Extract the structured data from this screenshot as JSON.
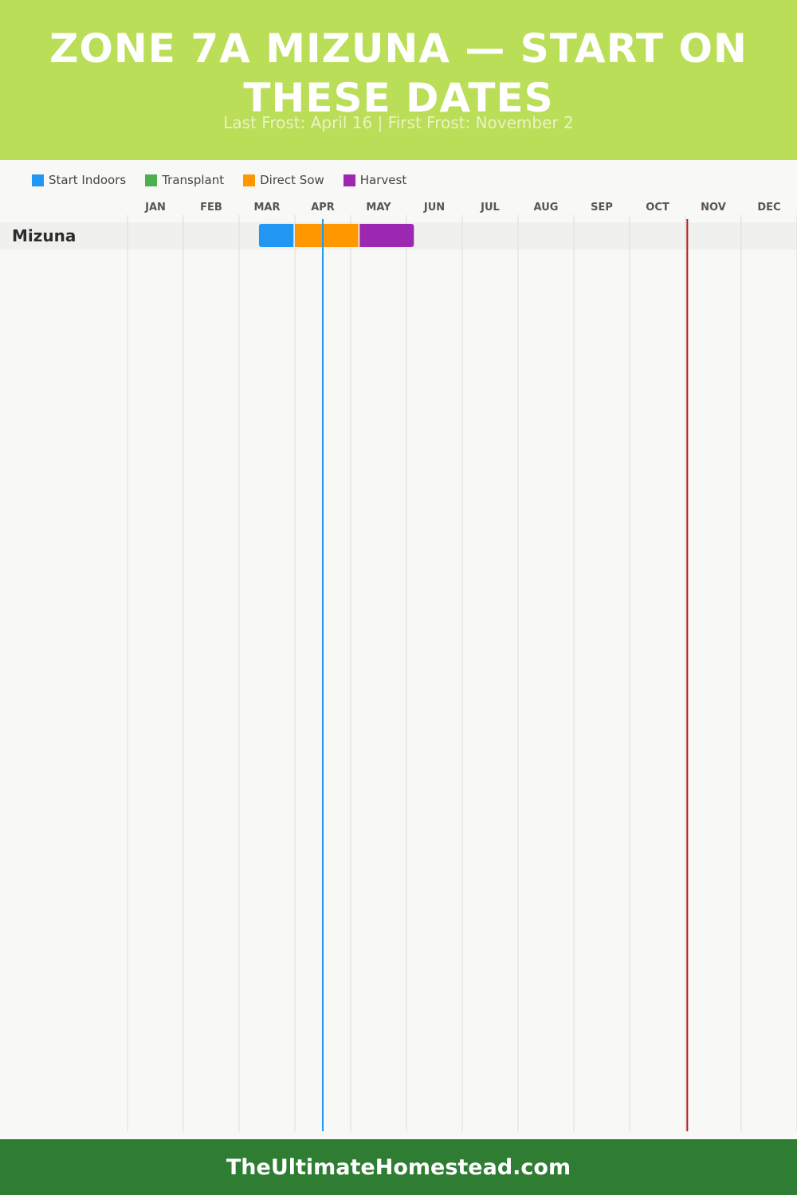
{
  "header": {
    "title": "Zone 7a Mizuna — Start on these dates",
    "subtitle": "Last Frost: April 16 | First Frost: November 2"
  },
  "footer": {
    "site": "TheUltimateHomestead.com"
  },
  "colors": {
    "header_bg": "#bade58",
    "footer_bg": "#2e7d32",
    "start_indoors": "#2196f3",
    "transplant": "#4caf50",
    "direct_sow": "#ff9800",
    "harvest": "#9c27b0",
    "last_frost_line": "#2196f3",
    "first_frost_line": "#b71c1c"
  },
  "chart_data": {
    "type": "gantt",
    "title": "Zone 7a Mizuna — Start on these dates",
    "subtitle": "Last Frost: April 16 | First Frost: November 2",
    "legend": [
      {
        "key": "start_indoors",
        "label": "Start Indoors"
      },
      {
        "key": "transplant",
        "label": "Transplant"
      },
      {
        "key": "direct_sow",
        "label": "Direct Sow"
      },
      {
        "key": "harvest",
        "label": "Harvest"
      }
    ],
    "legend_position": "top-left",
    "months": [
      "JAN",
      "FEB",
      "MAR",
      "APR",
      "MAY",
      "JUN",
      "JUL",
      "AUG",
      "SEP",
      "OCT",
      "NOV",
      "DEC"
    ],
    "rows": [
      {
        "crop": "Mizuna",
        "phases": [
          {
            "phase": "start_indoors",
            "start": "Mar 12",
            "end": "Mar 31"
          },
          {
            "phase": "direct_sow",
            "start": "Apr 1",
            "end": "May 5"
          },
          {
            "phase": "harvest",
            "start": "May 6",
            "end": "Jun 5"
          }
        ]
      }
    ],
    "markers": [
      {
        "name": "Last Frost",
        "date": "Apr 16",
        "color_key": "last_frost_line"
      },
      {
        "name": "First Frost",
        "date": "Nov 2",
        "color_key": "first_frost_line"
      }
    ],
    "grid": true
  }
}
